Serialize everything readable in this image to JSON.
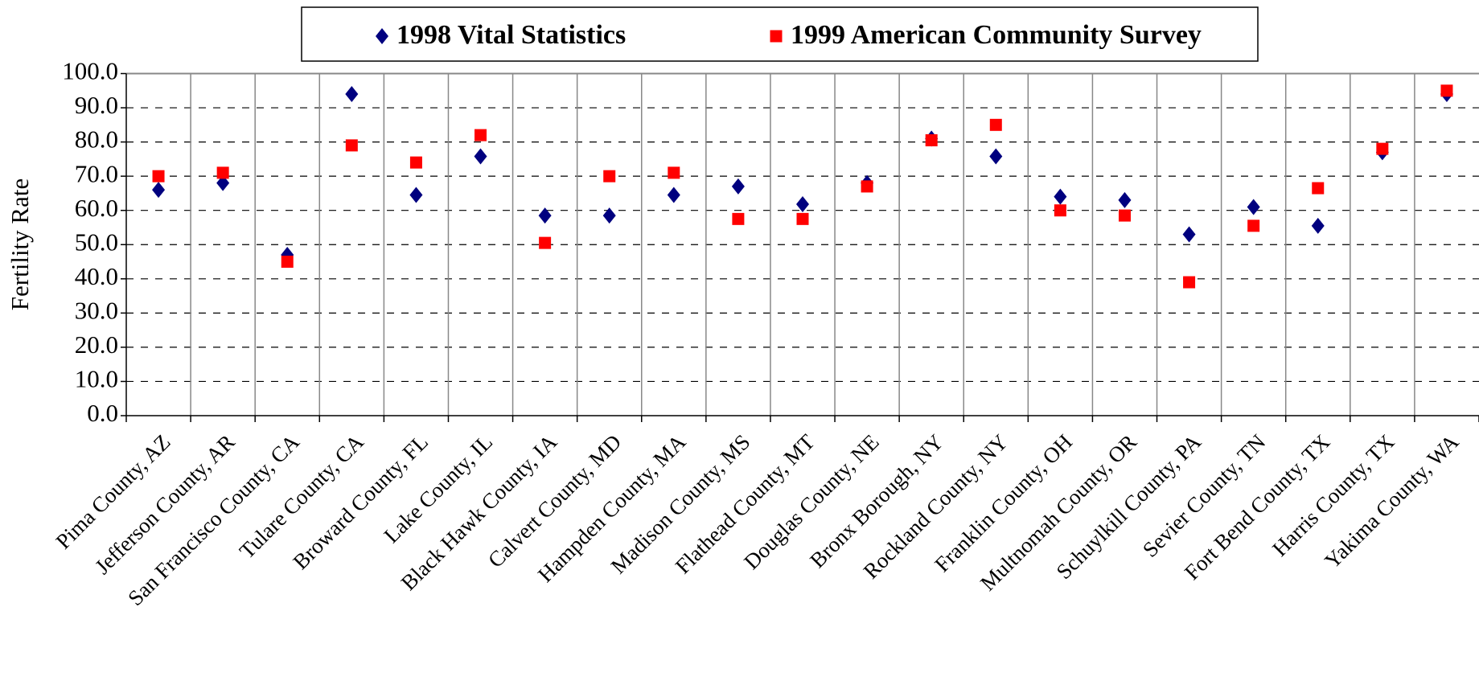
{
  "chart_data": {
    "type": "scatter",
    "y_label": "Fertility Rate",
    "categories": [
      "Pima County, AZ",
      "Jefferson County, AR",
      "San Francisco County, CA",
      "Tulare County, CA",
      "Broward County, FL",
      "Lake County, IL",
      "Black Hawk County, IA",
      "Calvert County, MD",
      "Hampden County, MA",
      "Madison County, MS",
      "Flathead County, MT",
      "Douglas County, NE",
      "Bronx Borough, NY",
      "Rockland County, NY",
      "Franklin County, OH",
      "Multnomah County, OR",
      "Schuylkill County, PA",
      "Sevier County, TN",
      "Fort Bend County, TX",
      "Harris County, TX",
      "Yakima County, WA"
    ],
    "series": [
      {
        "name": "1998 Vital Statistics",
        "color": "#00007f",
        "marker": "diamond",
        "values": [
          66,
          68,
          47,
          94,
          64.5,
          75.8,
          58.5,
          58.5,
          64.5,
          67,
          61.8,
          68,
          81,
          75.8,
          64,
          63,
          53,
          61,
          55.5,
          77,
          94
        ]
      },
      {
        "name": "1999 American Community Survey",
        "color": "#ff0000",
        "marker": "square",
        "values": [
          70,
          71,
          45,
          79,
          74,
          82,
          50.5,
          70,
          71,
          57.5,
          57.5,
          67,
          80.5,
          85,
          60,
          58.5,
          39,
          55.5,
          66.5,
          78,
          95
        ]
      }
    ],
    "ylim": [
      0,
      100
    ],
    "yticks": [
      {
        "value": 0,
        "label": "0.0"
      },
      {
        "value": 10,
        "label": "10.0"
      },
      {
        "value": 20,
        "label": "20.0"
      },
      {
        "value": 30,
        "label": "30.0"
      },
      {
        "value": 40,
        "label": "40.0"
      },
      {
        "value": 50,
        "label": "50.0"
      },
      {
        "value": 60,
        "label": "60.0"
      },
      {
        "value": 70,
        "label": "70.0"
      },
      {
        "value": 80,
        "label": "80.0"
      },
      {
        "value": 90,
        "label": "90.0"
      },
      {
        "value": 100,
        "label": "100.0"
      }
    ],
    "grid": true,
    "legend": "top"
  }
}
